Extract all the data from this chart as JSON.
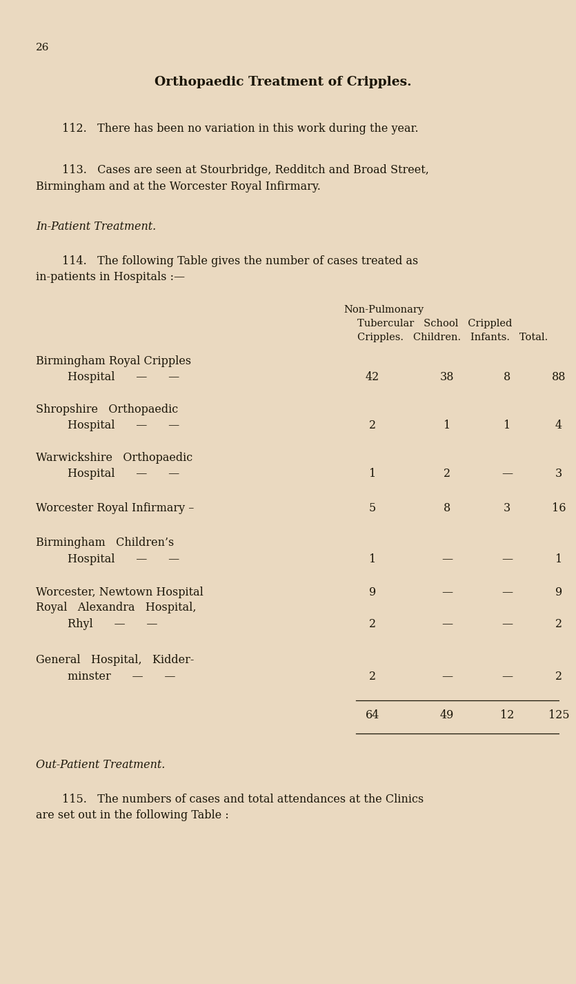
{
  "bg_color": "#EAD9C0",
  "text_color": "#1a1508",
  "page_number": "26",
  "title": "Orthopaedic Treatment of Cripples.",
  "para112": "112.   There has been no variation in this work during the year.",
  "para113_line1": "113.   Cases are seen at Stourbridge, Redditch and Broad Street,",
  "para113_line2": "Birmingham and at the Worcester Royal Infirmary.",
  "inpatient_heading": "In-Patient Treatment.",
  "para114_line1": "114.   The following Table gives the number of cases treated as",
  "para114_line2": "in-patients in Hospitals :—",
  "col_header_line1": "Non-Pulmonary",
  "col_header_line2": "Tubercular   School   Crippled",
  "col_header_line3": "Cripples.   Children.   Infants.   Total.",
  "table_rows": [
    {
      "name_line1": "Birmingham Royal Cripples",
      "name_line2": "Hospital      —      —",
      "col1": "42",
      "col2": "38",
      "col3": "8",
      "col4": "88",
      "two_line": true
    },
    {
      "name_line1": "Shropshire   Orthopaedic",
      "name_line2": "Hospital      —      —",
      "col1": "2",
      "col2": "1",
      "col3": "1",
      "col4": "4",
      "two_line": true
    },
    {
      "name_line1": "Warwickshire   Orthopaedic",
      "name_line2": "Hospital      —      —",
      "col1": "1",
      "col2": "2",
      "col3": "—",
      "col4": "3",
      "two_line": true
    },
    {
      "name_line1": "Worcester Royal Infirmary –",
      "name_line2": "",
      "col1": "5",
      "col2": "8",
      "col3": "3",
      "col4": "16",
      "two_line": false
    },
    {
      "name_line1": "Birmingham   Children’s",
      "name_line2": "Hospital      —      —",
      "col1": "1",
      "col2": "—",
      "col3": "—",
      "col4": "1",
      "two_line": true
    },
    {
      "name_line1": "Worcester, Newtown Hospital",
      "name_line2": "",
      "col1": "9",
      "col2": "—",
      "col3": "—",
      "col4": "9",
      "two_line": false
    },
    {
      "name_line1": "Royal   Alexandra   Hospital,",
      "name_line2": "Rhyl      —      —",
      "col1": "2",
      "col2": "—",
      "col3": "—",
      "col4": "2",
      "two_line": true
    },
    {
      "name_line1": "General   Hospital,   Kidder-",
      "name_line2": "minster      —      —",
      "col1": "2",
      "col2": "—",
      "col3": "—",
      "col4": "2",
      "two_line": true
    }
  ],
  "total_row": {
    "col1": "64",
    "col2": "49",
    "col3": "12",
    "col4": "125"
  },
  "outpatient_heading": "Out-Patient Treatment.",
  "para115_line1": "115.   The numbers of cases and total attendances at the Clinics",
  "para115_line2": "are set out in the following Table :"
}
